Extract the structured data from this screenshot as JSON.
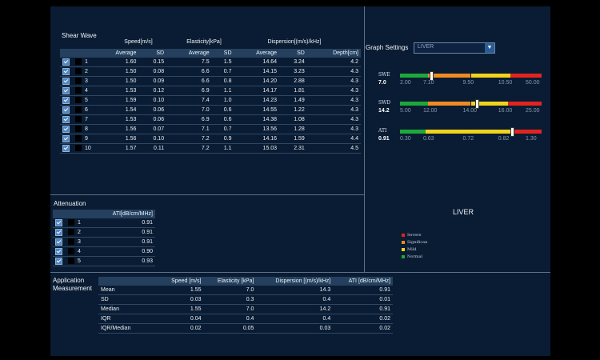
{
  "shear_wave": {
    "title": "Shear Wave",
    "group_headers": {
      "speed": "Speed[m/s]",
      "elasticity": "Elasticity[kPa]",
      "dispersion": "Dispersion[(m/s)/kHz]"
    },
    "columns": [
      "Average",
      "SD",
      "Average",
      "SD",
      "Average",
      "SD",
      "Depth[cm]"
    ],
    "rows": [
      {
        "n": "1",
        "v": [
          "1.60",
          "0.15",
          "7.5",
          "1.5",
          "14.64",
          "3.24",
          "4.2"
        ]
      },
      {
        "n": "2",
        "v": [
          "1.50",
          "0.08",
          "6.6",
          "0.7",
          "14.15",
          "3.23",
          "4.3"
        ]
      },
      {
        "n": "3",
        "v": [
          "1.50",
          "0.09",
          "6.6",
          "0.8",
          "14.20",
          "2.88",
          "4.3"
        ]
      },
      {
        "n": "4",
        "v": [
          "1.53",
          "0.12",
          "6.9",
          "1.1",
          "14.17",
          "1.81",
          "4.3"
        ]
      },
      {
        "n": "5",
        "v": [
          "1.59",
          "0.10",
          "7.4",
          "1.0",
          "14.23",
          "1.49",
          "4.3"
        ]
      },
      {
        "n": "6",
        "v": [
          "1.54",
          "0.06",
          "7.0",
          "0.6",
          "14.55",
          "1.22",
          "4.3"
        ]
      },
      {
        "n": "7",
        "v": [
          "1.53",
          "0.06",
          "6.9",
          "0.6",
          "14.38",
          "1.08",
          "4.3"
        ]
      },
      {
        "n": "8",
        "v": [
          "1.56",
          "0.07",
          "7.1",
          "0.7",
          "13.56",
          "1.28",
          "4.3"
        ]
      },
      {
        "n": "9",
        "v": [
          "1.56",
          "0.10",
          "7.2",
          "0.9",
          "14.16",
          "1.59",
          "4.4"
        ]
      },
      {
        "n": "10",
        "v": [
          "1.57",
          "0.11",
          "7.2",
          "1.1",
          "15.03",
          "2.31",
          "4.5"
        ]
      }
    ]
  },
  "attenuation": {
    "title": "Attenuation",
    "column": "ATI[dB/cm/MHz]",
    "rows": [
      {
        "n": "1",
        "v": "0.91"
      },
      {
        "n": "2",
        "v": "0.91"
      },
      {
        "n": "3",
        "v": "0.91"
      },
      {
        "n": "4",
        "v": "0.90"
      },
      {
        "n": "5",
        "v": "0.93"
      }
    ]
  },
  "graph_settings": {
    "label": "Graph Settings",
    "selected": "LIVER",
    "gauges": [
      {
        "name": "SWE",
        "value": "7.0",
        "ticks": [
          "2.00",
          "7.10",
          "9.50",
          "10.50",
          "50.00"
        ],
        "level": 0.22
      },
      {
        "name": "SWD",
        "value": "14.2",
        "ticks": [
          "5.00",
          "12.00",
          "14.00",
          "16.00",
          "25.00"
        ],
        "level": 0.54
      },
      {
        "name": "ATI",
        "value": "0.91",
        "ticks": [
          "0.30",
          "0.63",
          "0.72",
          "0.82",
          "1.30"
        ],
        "level": 0.79
      }
    ],
    "colors": {
      "normal": "#1fa83a",
      "mild": "#f2d21d",
      "significant": "#f08a22",
      "severe": "#e2241f"
    }
  },
  "organ_label": "LIVER",
  "legend": [
    {
      "label": "Severe",
      "color": "#e2241f"
    },
    {
      "label": "Significan",
      "color": "#f08a22"
    },
    {
      "label": "Mild",
      "color": "#f2d21d"
    },
    {
      "label": "Normal",
      "color": "#1fa83a"
    }
  ],
  "measurement": {
    "title_line1": "Application",
    "title_line2": "Measurement",
    "columns": [
      "Speed [m/s]",
      "Elasticity [kPa]",
      "Dispersion [(m/s)/kHz]",
      "ATI [dB/cm/MHz]"
    ],
    "rows": [
      {
        "label": "Mean",
        "v": [
          "1.55",
          "7.0",
          "14.3",
          "0.91"
        ]
      },
      {
        "label": "SD",
        "v": [
          "0.03",
          "0.3",
          "0.4",
          "0.01"
        ]
      },
      {
        "label": "Median",
        "v": [
          "1.55",
          "7.0",
          "14.2",
          "0.91"
        ]
      },
      {
        "label": "IQR",
        "v": [
          "0.04",
          "0.4",
          "0.4",
          "0.02"
        ]
      },
      {
        "label": "IQR/Median",
        "v": [
          "0.02",
          "0.05",
          "0.03",
          "0.02"
        ]
      }
    ]
  }
}
